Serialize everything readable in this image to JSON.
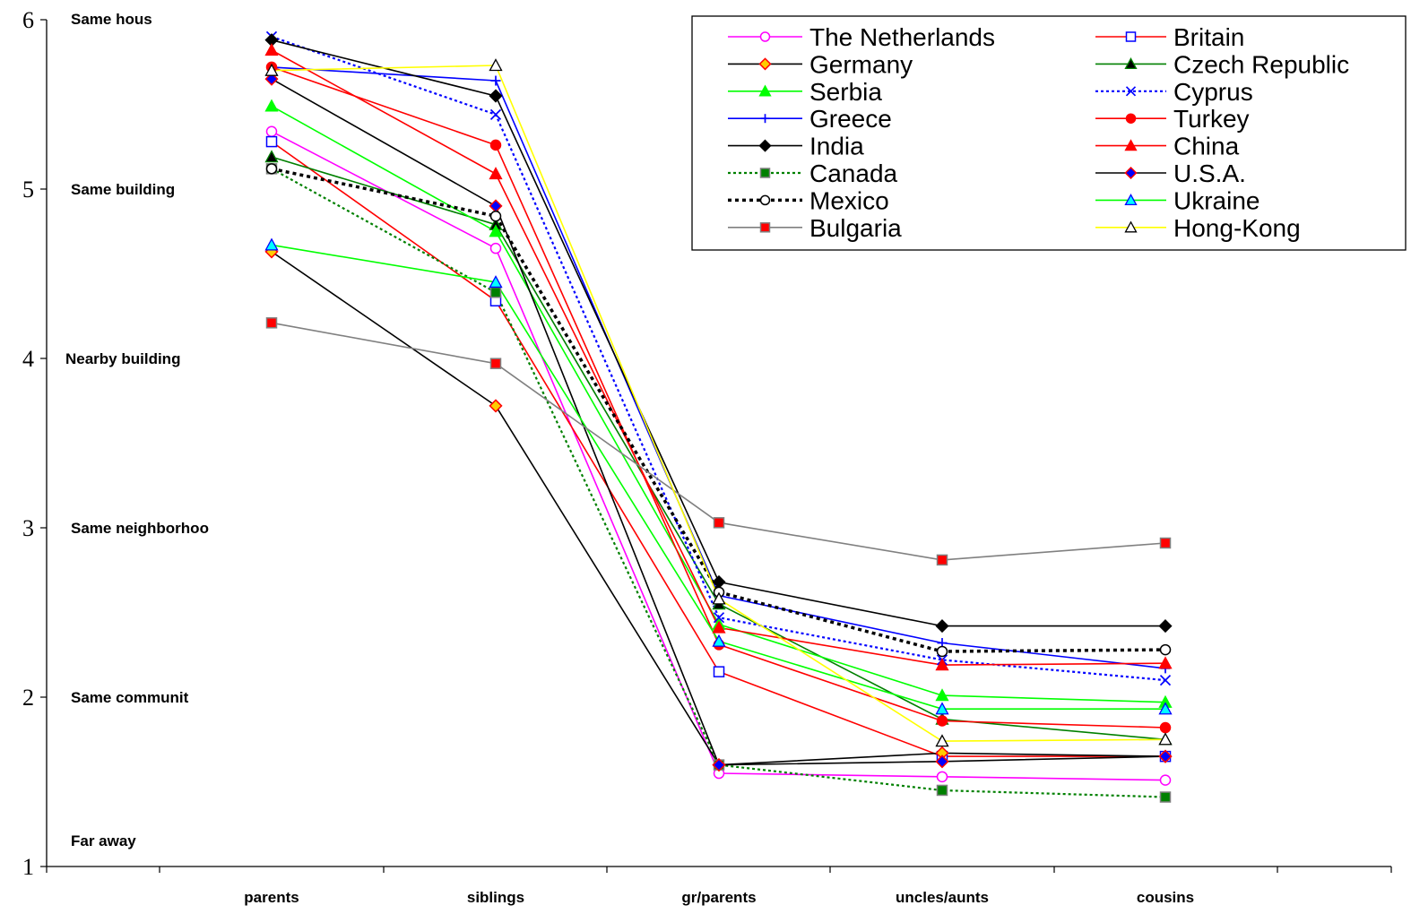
{
  "chart_data": {
    "type": "line",
    "title": "",
    "xlabel": "",
    "ylabel": "",
    "ylim": [
      1,
      6
    ],
    "yticks": [
      1,
      2,
      3,
      4,
      5,
      6
    ],
    "grid": false,
    "legend_position": "top-right",
    "categories": [
      "parents",
      "siblings",
      "gr/parents",
      "uncles/aunts",
      "cousins"
    ],
    "level_labels": [
      {
        "y": 6,
        "text": "Same hous"
      },
      {
        "y": 5,
        "text": "Same building"
      },
      {
        "y": 4,
        "text": "Nearby building"
      },
      {
        "y": 3,
        "text": "Same neighborhoo"
      },
      {
        "y": 2,
        "text": "Same communit"
      },
      {
        "y": 1,
        "text": "Far away"
      }
    ],
    "series": [
      {
        "name": "The Netherlands",
        "color": "#ff00ff",
        "marker": "circle",
        "marker_fill": "#ffffff",
        "dash": "solid",
        "values": [
          5.34,
          4.65,
          1.55,
          1.53,
          1.51
        ]
      },
      {
        "name": "Britain",
        "color": "#ff0000",
        "marker": "square",
        "marker_fill": "#ffffff",
        "marker_stroke": "#0000ff",
        "dash": "solid",
        "values": [
          5.28,
          4.34,
          2.15,
          1.65,
          1.65
        ]
      },
      {
        "name": "Germany",
        "color": "#000000",
        "marker": "diamond",
        "marker_fill": "#ffcc00",
        "marker_stroke": "#ff0000",
        "dash": "solid",
        "values": [
          4.63,
          3.72,
          1.6,
          1.67,
          1.65
        ]
      },
      {
        "name": "Czech Republic",
        "color": "#008000",
        "marker": "triangle",
        "marker_fill": "#000000",
        "dash": "solid",
        "values": [
          5.19,
          4.79,
          2.55,
          1.87,
          1.75
        ]
      },
      {
        "name": "Serbia",
        "color": "#00ff00",
        "marker": "triangle",
        "marker_fill": "#00ff00",
        "dash": "solid",
        "values": [
          5.49,
          4.75,
          2.43,
          2.01,
          1.97
        ]
      },
      {
        "name": "Cyprus",
        "color": "#0000ff",
        "marker": "x",
        "marker_fill": "none",
        "dash": "dotted",
        "values": [
          5.9,
          5.44,
          2.47,
          2.22,
          2.1
        ]
      },
      {
        "name": "Greece",
        "color": "#0000ff",
        "marker": "plus",
        "marker_fill": "none",
        "dash": "solid",
        "values": [
          5.72,
          5.64,
          2.6,
          2.32,
          2.17
        ]
      },
      {
        "name": "Turkey",
        "color": "#ff0000",
        "marker": "circle",
        "marker_fill": "#ff0000",
        "dash": "solid",
        "values": [
          5.72,
          5.26,
          2.31,
          1.86,
          1.82
        ]
      },
      {
        "name": "India",
        "color": "#000000",
        "marker": "diamond",
        "marker_fill": "#000000",
        "dash": "solid",
        "values": [
          5.88,
          5.55,
          2.68,
          2.42,
          2.42
        ]
      },
      {
        "name": "China",
        "color": "#ff0000",
        "marker": "triangle",
        "marker_fill": "#ff0000",
        "dash": "solid",
        "values": [
          5.82,
          5.09,
          2.41,
          2.19,
          2.2
        ]
      },
      {
        "name": "Canada",
        "color": "#008000",
        "marker": "square",
        "marker_fill": "#008000",
        "marker_stroke": "#808080",
        "dash": "dotted",
        "values": [
          5.12,
          4.39,
          1.6,
          1.45,
          1.41
        ]
      },
      {
        "name": "U.S.A.",
        "color": "#000000",
        "marker": "diamond",
        "marker_fill": "#0000ff",
        "marker_stroke": "#ff0000",
        "dash": "solid",
        "values": [
          5.65,
          4.9,
          1.6,
          1.62,
          1.65
        ]
      },
      {
        "name": "Mexico",
        "color": "#000000",
        "marker": "circle",
        "marker_fill": "#ffffff",
        "dash": "dotted_bold",
        "values": [
          5.12,
          4.84,
          2.62,
          2.27,
          2.28
        ]
      },
      {
        "name": "Ukraine",
        "color": "#00ff00",
        "marker": "triangle",
        "marker_fill": "#00ffff",
        "marker_stroke": "#0000ff",
        "dash": "solid",
        "values": [
          4.67,
          4.45,
          2.33,
          1.93,
          1.93
        ]
      },
      {
        "name": "Bulgaria",
        "color": "#808080",
        "marker": "square",
        "marker_fill": "#ff0000",
        "marker_stroke": "#808080",
        "dash": "solid",
        "values": [
          4.21,
          3.97,
          3.03,
          2.81,
          2.91
        ]
      },
      {
        "name": "Hong-Kong",
        "color": "#ffff00",
        "marker": "triangle",
        "marker_fill": "#ffffff",
        "marker_stroke": "#000000",
        "dash": "solid",
        "values": [
          5.7,
          5.73,
          2.58,
          1.74,
          1.75
        ]
      }
    ]
  }
}
